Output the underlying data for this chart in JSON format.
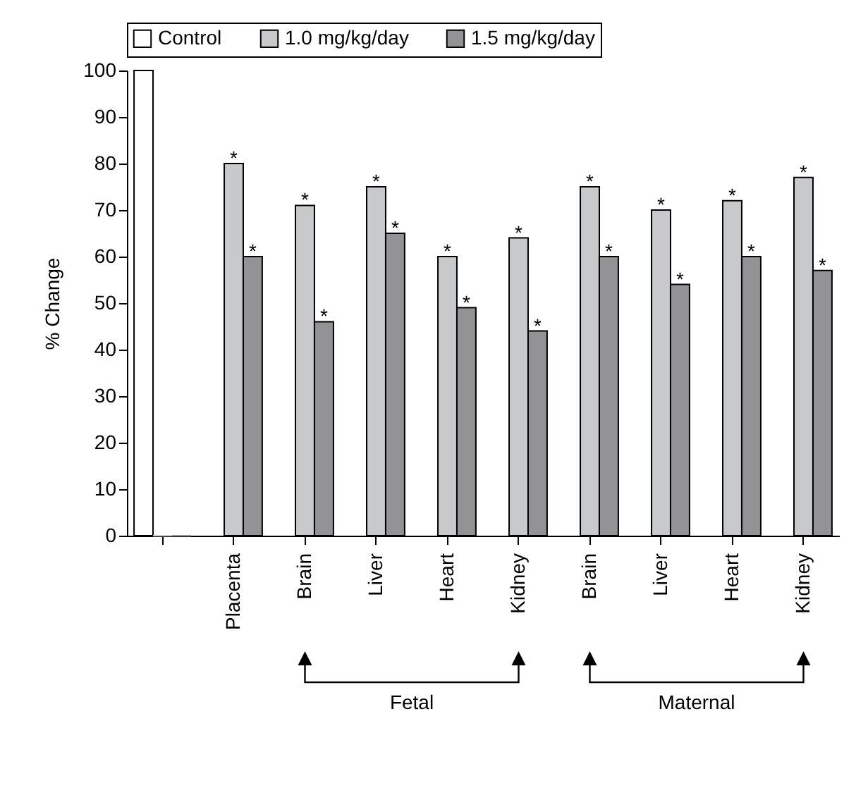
{
  "chart_data": {
    "type": "bar",
    "ylabel": "% Change",
    "categories": [
      null,
      "Placenta",
      "Brain",
      "Liver",
      "Heart",
      "Kidney",
      "Brain",
      "Liver",
      "Heart",
      "Kidney"
    ],
    "series": [
      {
        "name": "Control",
        "color": "#ffffff",
        "values": [
          100,
          null,
          null,
          null,
          null,
          null,
          null,
          null,
          null,
          null
        ]
      },
      {
        "name": "1.0 mg/kg/day",
        "color": "#c8c9cb",
        "values": [
          0,
          80,
          71,
          75,
          60,
          64,
          75,
          70,
          72,
          77
        ],
        "value_labels": [
          null,
          "*",
          "*",
          "*",
          "*",
          "*",
          "*",
          "*",
          "*",
          "*"
        ]
      },
      {
        "name": "1.5 mg/kg/day",
        "color": "#939396",
        "values": [
          0,
          60,
          46,
          65,
          49,
          44,
          60,
          54,
          60,
          57
        ],
        "value_labels": [
          null,
          "*",
          "*",
          "*",
          "*",
          "*",
          "*",
          "*",
          "*",
          "*"
        ]
      }
    ],
    "ylim": [
      0,
      100
    ],
    "yticks": [
      0,
      10,
      20,
      30,
      40,
      50,
      60,
      70,
      80,
      90,
      100
    ],
    "legend": "top",
    "annotations": [
      "Fetal",
      "Maternal"
    ]
  }
}
